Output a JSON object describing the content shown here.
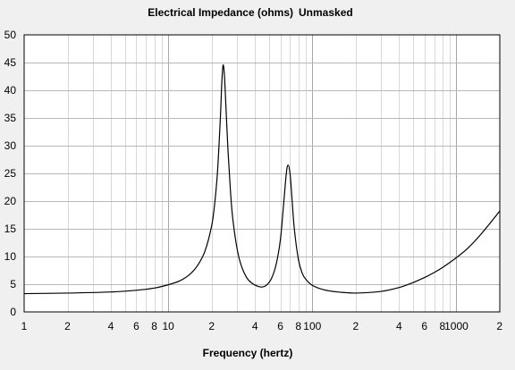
{
  "chart_data": {
    "type": "line",
    "title": "Electrical Impedance (ohms)",
    "subtitle": "Unmasked",
    "xlabel": "Frequency (hertz)",
    "ylabel": "",
    "xscale": "log",
    "xlim": [
      1,
      2000
    ],
    "ylim": [
      0,
      50
    ],
    "grid": true,
    "y_ticks": [
      {
        "value": 0,
        "label": "0"
      },
      {
        "value": 5,
        "label": "5"
      },
      {
        "value": 10,
        "label": "10"
      },
      {
        "value": 15,
        "label": "15"
      },
      {
        "value": 20,
        "label": "20"
      },
      {
        "value": 25,
        "label": "25"
      },
      {
        "value": 30,
        "label": "30"
      },
      {
        "value": 35,
        "label": "35"
      },
      {
        "value": 40,
        "label": "40"
      },
      {
        "value": 45,
        "label": "45"
      },
      {
        "value": 50,
        "label": "50"
      }
    ],
    "x_ticks": [
      {
        "value": 1,
        "label": "1"
      },
      {
        "value": 2,
        "label": "2"
      },
      {
        "value": 4,
        "label": "4"
      },
      {
        "value": 6,
        "label": "6"
      },
      {
        "value": 8,
        "label": "8"
      },
      {
        "value": 10,
        "label": "10"
      },
      {
        "value": 20,
        "label": "2"
      },
      {
        "value": 40,
        "label": "4"
      },
      {
        "value": 60,
        "label": "6"
      },
      {
        "value": 80,
        "label": "8"
      },
      {
        "value": 100,
        "label": "100"
      },
      {
        "value": 200,
        "label": "2"
      },
      {
        "value": 400,
        "label": "4"
      },
      {
        "value": 600,
        "label": "6"
      },
      {
        "value": 800,
        "label": "8"
      },
      {
        "value": 1000,
        "label": "1000"
      },
      {
        "value": 2000,
        "label": "2"
      }
    ],
    "series": [
      {
        "color": "#000000",
        "x": [
          1,
          2,
          4,
          6,
          8,
          10,
          12,
          14,
          16,
          18,
          20,
          21,
          22,
          23,
          23.5,
          24,
          24.5,
          25,
          26,
          27,
          28,
          30,
          32,
          35,
          38,
          42,
          45,
          48,
          52,
          56,
          60,
          63,
          66,
          68,
          70,
          72,
          75,
          80,
          85,
          90,
          100,
          120,
          150,
          200,
          300,
          400,
          500,
          600,
          700,
          800,
          1000,
          1200,
          1500,
          2000
        ],
        "y": [
          3.3,
          3.4,
          3.6,
          3.9,
          4.3,
          4.9,
          5.6,
          6.7,
          8.4,
          11.0,
          15.5,
          19.5,
          25.5,
          35.0,
          41.0,
          44.5,
          43.0,
          38.5,
          29.0,
          22.0,
          17.0,
          11.5,
          8.5,
          6.2,
          5.2,
          4.6,
          4.5,
          4.8,
          6.0,
          8.5,
          13.0,
          19.0,
          25.0,
          26.5,
          25.0,
          21.0,
          15.0,
          9.5,
          7.0,
          5.9,
          4.8,
          4.0,
          3.6,
          3.4,
          3.7,
          4.4,
          5.3,
          6.2,
          7.1,
          8.0,
          9.8,
          11.5,
          14.2,
          18.2
        ]
      }
    ]
  }
}
